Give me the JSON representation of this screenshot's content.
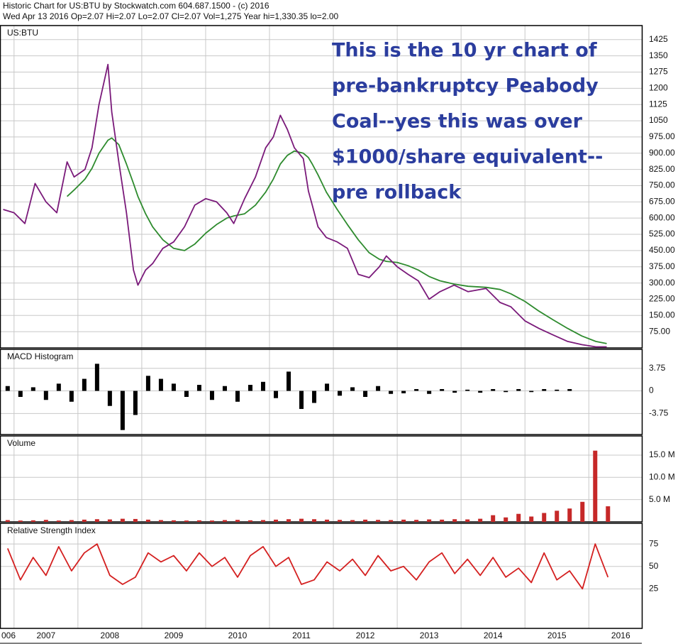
{
  "header": {
    "title": "Historic Chart for US:BTU by Stockwatch.com 604.687.1500 - (c) 2016",
    "quote": "Wed Apr 13 2016  Op=2.07  Hi=2.07  Lo=2.07  Cl=2.07  Vol=1,275  Year hi=1,330.35  lo=2.00"
  },
  "chart_data": [
    {
      "type": "line",
      "title": "US:BTU",
      "annotation": [
        "This is the 10 yr chart of",
        "pre-bankruptcy Peabody",
        "Coal--yes this was over",
        "$1000/share equivalent--",
        "pre rollback"
      ],
      "xlim": [
        2006.78,
        2016.83
      ],
      "ylim": [
        0,
        1490
      ],
      "grid": true,
      "yticks": [
        1425,
        1350,
        1275,
        1200,
        1125,
        1050,
        {
          "value": 975,
          "label": "975.00"
        },
        {
          "value": 900,
          "label": "900.00"
        },
        {
          "value": 825,
          "label": "825.00"
        },
        {
          "value": 750,
          "label": "750.00"
        },
        {
          "value": 675,
          "label": "675.00"
        },
        {
          "value": 600,
          "label": "600.00"
        },
        {
          "value": 525,
          "label": "525.00"
        },
        {
          "value": 450,
          "label": "450.00"
        },
        {
          "value": 375,
          "label": "375.00"
        },
        {
          "value": 300,
          "label": "300.00"
        },
        {
          "value": 225,
          "label": "225.00"
        },
        {
          "value": 150,
          "label": "150.00"
        },
        {
          "value": 75,
          "label": "75.00"
        }
      ],
      "x": [
        2006.83,
        2007,
        2007.17,
        2007.33,
        2007.5,
        2007.67,
        2007.83,
        2007.94,
        2008.11,
        2008.22,
        2008.33,
        2008.47,
        2008.53,
        2008.64,
        2008.76,
        2008.87,
        2008.94,
        2009.06,
        2009.17,
        2009.33,
        2009.5,
        2009.67,
        2009.83,
        2010,
        2010.17,
        2010.33,
        2010.44,
        2010.61,
        2010.78,
        2010.94,
        2011.06,
        2011.17,
        2011.28,
        2011.39,
        2011.53,
        2011.61,
        2011.67,
        2011.76,
        2011.89,
        2012.06,
        2012.22,
        2012.39,
        2012.56,
        2012.72,
        2012.83,
        2013,
        2013.17,
        2013.33,
        2013.5,
        2013.67,
        2013.89,
        2014.11,
        2014.39,
        2014.61,
        2014.78,
        2015,
        2015.22,
        2015.44,
        2015.67,
        2015.89,
        2016.11,
        2016.28
      ],
      "series": [
        {
          "color": "#2e8b2e",
          "values": [
            null,
            null,
            null,
            null,
            null,
            null,
            700,
            730,
            780,
            830,
            900,
            960,
            970,
            940,
            850,
            760,
            700,
            620,
            560,
            500,
            460,
            450,
            480,
            530,
            570,
            600,
            610,
            620,
            660,
            720,
            780,
            850,
            890,
            910,
            900,
            880,
            850,
            800,
            720,
            640,
            570,
            500,
            440,
            410,
            400,
            395,
            380,
            360,
            330,
            310,
            295,
            285,
            280,
            270,
            250,
            215,
            170,
            130,
            90,
            55,
            30,
            20
          ]
        },
        {
          "color": "#7a1a7a",
          "values": [
            640,
            625,
            575,
            760,
            675,
            625,
            860,
            790,
            825,
            925,
            1125,
            1310,
            1090,
            860,
            625,
            360,
            290,
            360,
            390,
            460,
            490,
            560,
            660,
            690,
            675,
            625,
            575,
            690,
            790,
            925,
            975,
            1075,
            1010,
            925,
            875,
            725,
            660,
            560,
            510,
            490,
            460,
            340,
            325,
            375,
            425,
            375,
            340,
            310,
            225,
            260,
            290,
            260,
            275,
            210,
            190,
            125,
            90,
            60,
            30,
            15,
            5,
            5
          ]
        }
      ]
    },
    {
      "type": "bar",
      "title": "MACD Histogram",
      "color": "#000000",
      "xlim": [
        2006.78,
        2016.83
      ],
      "ylim": [
        -7.25,
        6.9
      ],
      "grid": true,
      "yticks": [
        3.75,
        0,
        -3.75
      ],
      "x": [
        2006.9,
        2007.1,
        2007.3,
        2007.5,
        2007.7,
        2007.9,
        2008.1,
        2008.3,
        2008.5,
        2008.7,
        2008.9,
        2009.1,
        2009.3,
        2009.5,
        2009.7,
        2009.9,
        2010.1,
        2010.3,
        2010.5,
        2010.7,
        2010.9,
        2011.1,
        2011.3,
        2011.5,
        2011.7,
        2011.9,
        2012.1,
        2012.3,
        2012.5,
        2012.7,
        2012.9,
        2013.1,
        2013.3,
        2013.5,
        2013.7,
        2013.9,
        2014.1,
        2014.3,
        2014.5,
        2014.7,
        2014.9,
        2015.1,
        2015.3,
        2015.5,
        2015.7,
        2015.9,
        2016.1,
        2016.3
      ],
      "values": [
        0.8,
        -1,
        0.6,
        -1.5,
        1.2,
        -1.8,
        2,
        4.5,
        -2.5,
        -6.5,
        -4,
        2.5,
        2,
        1.2,
        -1,
        1,
        -1.5,
        0.8,
        -1.8,
        1,
        1.5,
        -1.2,
        3.2,
        -3,
        -2,
        1.2,
        -0.8,
        0.6,
        -1,
        0.8,
        -0.5,
        -0.4,
        0.3,
        -0.5,
        0.3,
        -0.3,
        0.2,
        -0.3,
        0.3,
        -0.2,
        0.3,
        -0.2,
        0.3,
        0.2,
        0.3,
        null,
        null,
        null
      ]
    },
    {
      "type": "bar",
      "title": "Volume",
      "color": "#c62828",
      "xlim": [
        2006.78,
        2016.83
      ],
      "ylim": [
        0,
        19300000
      ],
      "grid": true,
      "yticks": [
        {
          "value": 15000000,
          "label": "15.0 M"
        },
        {
          "value": 10000000,
          "label": "10.0 M"
        },
        {
          "value": 5000000,
          "label": "5.0 M"
        }
      ],
      "x": [
        2006.9,
        2007.1,
        2007.3,
        2007.5,
        2007.7,
        2007.9,
        2008.1,
        2008.3,
        2008.5,
        2008.7,
        2008.9,
        2009.1,
        2009.3,
        2009.5,
        2009.7,
        2009.9,
        2010.1,
        2010.3,
        2010.5,
        2010.7,
        2010.9,
        2011.1,
        2011.3,
        2011.5,
        2011.7,
        2011.9,
        2012.1,
        2012.3,
        2012.5,
        2012.7,
        2012.9,
        2013.1,
        2013.3,
        2013.5,
        2013.7,
        2013.9,
        2014.1,
        2014.3,
        2014.5,
        2014.7,
        2014.9,
        2015.1,
        2015.3,
        2015.5,
        2015.7,
        2015.9,
        2016.1,
        2016.3
      ],
      "values": [
        400000,
        300000,
        350000,
        450000,
        300000,
        400000,
        500000,
        600000,
        550000,
        700000,
        650000,
        500000,
        400000,
        350000,
        300000,
        350000,
        300000,
        400000,
        450000,
        350000,
        400000,
        500000,
        600000,
        700000,
        600000,
        500000,
        450000,
        400000,
        500000,
        450000,
        400000,
        500000,
        450000,
        550000,
        500000,
        600000,
        550000,
        700000,
        1500000,
        1000000,
        1800000,
        1200000,
        2000000,
        2500000,
        3000000,
        4500000,
        16000000,
        3500000
      ]
    },
    {
      "type": "line",
      "title": "Relative Strength Index",
      "xlim": [
        2006.78,
        2016.83
      ],
      "ylim": [
        -19,
        98
      ],
      "grid": true,
      "yticks": [
        75,
        50,
        25
      ],
      "xticks": [
        {
          "value": 2006,
          "label": "006"
        },
        2007,
        2008,
        2009,
        2010,
        2011,
        2012,
        2013,
        2014,
        2015,
        2016
      ],
      "x": [
        2006.9,
        2007.1,
        2007.3,
        2007.5,
        2007.7,
        2007.9,
        2008.1,
        2008.3,
        2008.5,
        2008.7,
        2008.9,
        2009.1,
        2009.3,
        2009.5,
        2009.7,
        2009.9,
        2010.1,
        2010.3,
        2010.5,
        2010.7,
        2010.9,
        2011.1,
        2011.3,
        2011.5,
        2011.7,
        2011.9,
        2012.1,
        2012.3,
        2012.5,
        2012.7,
        2012.9,
        2013.1,
        2013.3,
        2013.5,
        2013.7,
        2013.9,
        2014.1,
        2014.3,
        2014.5,
        2014.7,
        2014.9,
        2015.1,
        2015.3,
        2015.5,
        2015.7,
        2015.9,
        2016.1,
        2016.3
      ],
      "series": [
        {
          "color": "#d42020",
          "values": [
            70,
            35,
            60,
            40,
            72,
            45,
            65,
            75,
            40,
            30,
            38,
            65,
            55,
            62,
            45,
            65,
            50,
            60,
            38,
            62,
            72,
            50,
            60,
            30,
            35,
            55,
            45,
            58,
            40,
            62,
            45,
            50,
            35,
            55,
            65,
            42,
            58,
            40,
            60,
            38,
            48,
            32,
            65,
            35,
            45,
            25,
            75,
            38
          ]
        }
      ]
    }
  ]
}
